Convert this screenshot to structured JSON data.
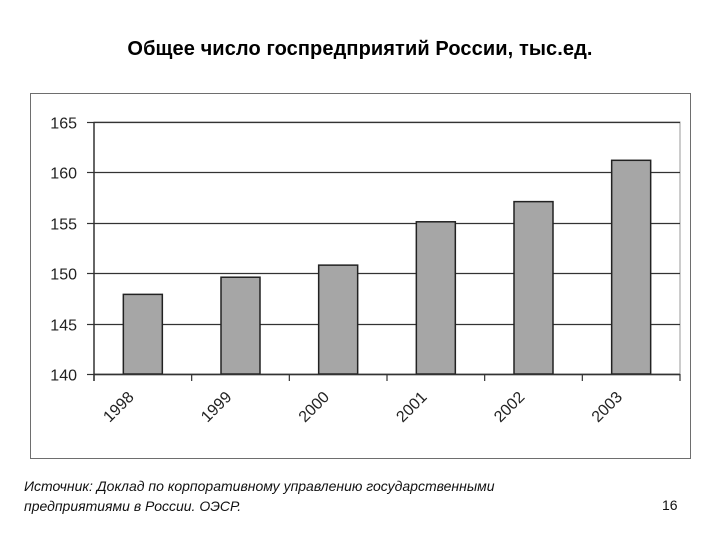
{
  "slide": {
    "title": "Общее число госпредприятий России, тыс.ед.",
    "source_line1": "Источник: Доклад по корпоративному управлению государственными",
    "source_line2": "предприятиями в России.  ОЭСР.",
    "page_number": "16"
  },
  "colors": {
    "bar_fill": "#a6a6a6",
    "bar_stroke": "#222222",
    "grid": "#333333",
    "frame": "#6e6e6e"
  },
  "chart_data": {
    "type": "bar",
    "title": "Общее число госпредприятий России, тыс.ед.",
    "xlabel": "",
    "ylabel": "",
    "categories": [
      "1998",
      "1999",
      "2000",
      "2001",
      "2002",
      "2003"
    ],
    "values": [
      147.9,
      149.6,
      150.8,
      155.1,
      157.1,
      161.2
    ],
    "ylim": [
      140,
      165
    ],
    "yticks": [
      140,
      145,
      150,
      155,
      160,
      165
    ],
    "grid": true,
    "legend": null,
    "xtick_rotation": -45
  }
}
